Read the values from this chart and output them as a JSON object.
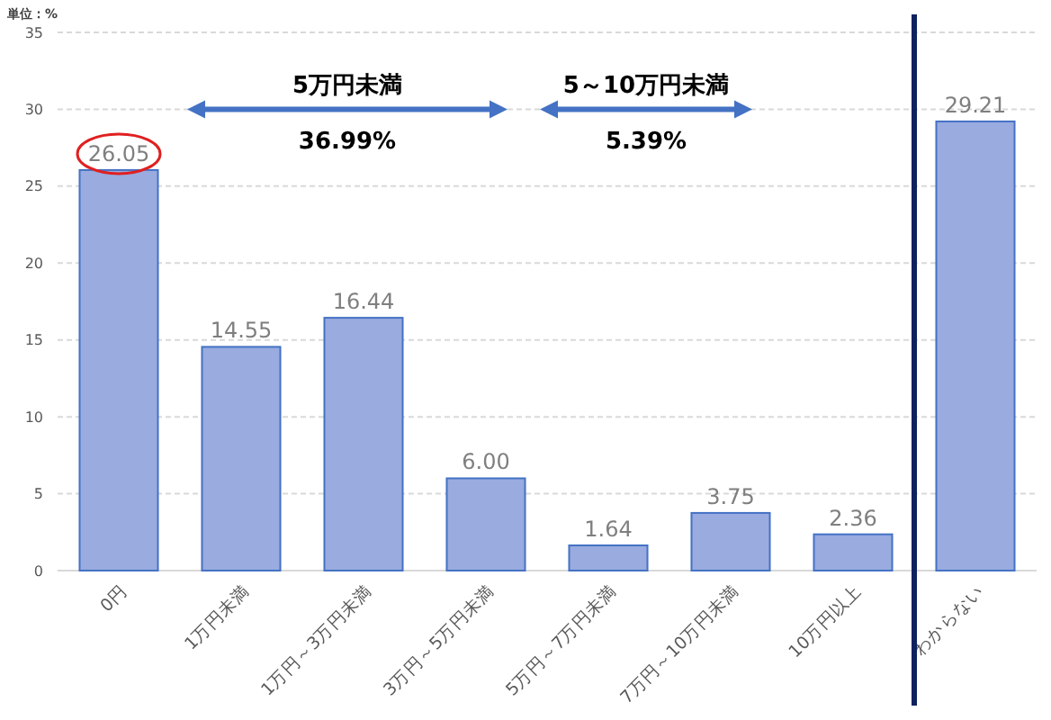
{
  "chart_data": {
    "type": "bar",
    "categories": [
      "0円",
      "1万円未満",
      "1万円～3万円未満",
      "3万円～5万円未満",
      "5万円～7万円未満",
      "7万円～10万円未満",
      "10万円以上",
      "わからない"
    ],
    "values": [
      26.05,
      14.55,
      16.44,
      6.0,
      1.64,
      3.75,
      2.36,
      29.21
    ],
    "value_labels": [
      "26.05",
      "14.55",
      "16.44",
      "6.00",
      "1.64",
      "3.75",
      "2.36",
      "29.21"
    ],
    "color": "#99abdf",
    "ylim": [
      0,
      35
    ],
    "yticks": [
      0,
      5,
      10,
      15,
      20,
      25,
      30,
      35
    ],
    "grid": "y",
    "annotations": [
      "単位：%",
      "5万円未満",
      "36.99%",
      "5～10万円未満",
      "5.39%"
    ]
  }
}
